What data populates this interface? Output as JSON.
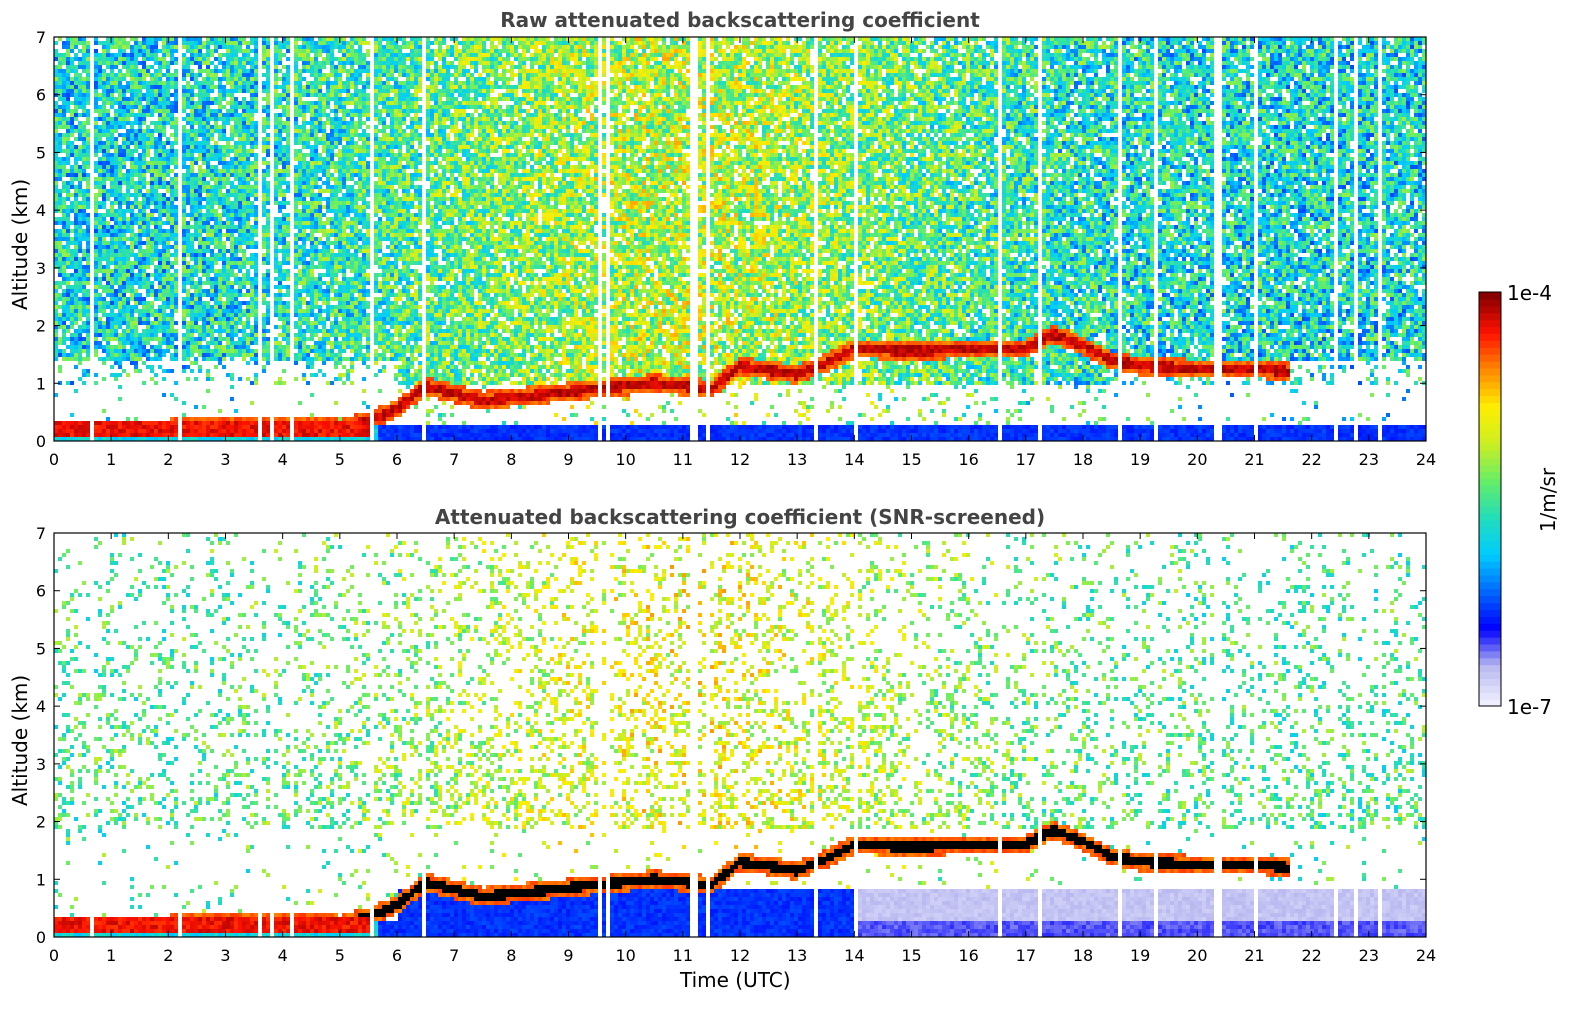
{
  "chart_data": [
    {
      "type": "heatmap",
      "title": "Raw attenuated backscattering coefficient",
      "xlabel": "",
      "ylabel": "Altitude (km)",
      "xlim": [
        0,
        24
      ],
      "ylim": [
        0,
        7
      ],
      "x_ticks": [
        "0",
        "1",
        "2",
        "3",
        "4",
        "5",
        "6",
        "7",
        "8",
        "9",
        "10",
        "11",
        "12",
        "13",
        "14",
        "15",
        "16",
        "17",
        "18",
        "19",
        "20",
        "21",
        "22",
        "23",
        "24"
      ],
      "y_ticks": [
        "0",
        "1",
        "2",
        "3",
        "4",
        "5",
        "6",
        "7"
      ],
      "layer_top_km": [
        {
          "t": 0,
          "z": 0.22
        },
        {
          "t": 2,
          "z": 0.22
        },
        {
          "t": 3.5,
          "z": 0.28
        },
        {
          "t": 5,
          "z": 0.22
        },
        {
          "t": 5.5,
          "z": 0.35
        },
        {
          "t": 6,
          "z": 0.55
        },
        {
          "t": 6.5,
          "z": 0.95
        },
        {
          "t": 7.5,
          "z": 0.7
        },
        {
          "t": 9,
          "z": 0.85
        },
        {
          "t": 10.5,
          "z": 1.0
        },
        {
          "t": 11.5,
          "z": 0.9
        },
        {
          "t": 12,
          "z": 1.3
        },
        {
          "t": 13,
          "z": 1.15
        },
        {
          "t": 13.5,
          "z": 1.35
        },
        {
          "t": 14,
          "z": 1.6
        },
        {
          "t": 15,
          "z": 1.55
        },
        {
          "t": 16,
          "z": 1.6
        },
        {
          "t": 17,
          "z": 1.6
        },
        {
          "t": 17.5,
          "z": 1.85
        },
        {
          "t": 18,
          "z": 1.65
        },
        {
          "t": 18.5,
          "z": 1.4
        },
        {
          "t": 19,
          "z": 1.3
        },
        {
          "t": 20,
          "z": 1.25
        },
        {
          "t": 21,
          "z": 1.25
        },
        {
          "t": 21.6,
          "z": 1.2
        }
      ],
      "gap_times_utc": [
        0.65,
        2.2,
        3.6,
        3.8,
        4.15,
        5.55,
        6.45,
        9.55,
        9.7,
        10.15,
        11.15,
        11.25,
        11.45,
        13.35,
        13.5,
        14.05,
        16.55,
        17.25,
        18.65,
        19.3,
        20.35,
        20.4,
        21.0,
        22.4,
        22.75,
        23.2
      ]
    },
    {
      "type": "heatmap",
      "title": "Attenuated backscattering coefficient (SNR-screened)",
      "xlabel": "Time (UTC)",
      "ylabel": "Altitude (km)",
      "xlim": [
        0,
        24
      ],
      "ylim": [
        0,
        7
      ],
      "x_ticks": [
        "0",
        "1",
        "2",
        "3",
        "4",
        "5",
        "6",
        "7",
        "8",
        "9",
        "10",
        "11",
        "12",
        "13",
        "14",
        "15",
        "16",
        "17",
        "18",
        "19",
        "20",
        "21",
        "22",
        "23",
        "24"
      ],
      "y_ticks": [
        "0",
        "1",
        "2",
        "3",
        "4",
        "5",
        "6",
        "7"
      ]
    }
  ],
  "colorbar": {
    "label": "1/m/sr",
    "max_label": "1e-4",
    "min_label": "1e-7",
    "scale": "log",
    "range": [
      1e-07,
      0.0001
    ],
    "colors": [
      "#eeeeff",
      "#b8b8f0",
      "#0000ff",
      "#0066ff",
      "#00ccff",
      "#22ddbb",
      "#66ee66",
      "#ccee22",
      "#ffee00",
      "#ff8800",
      "#ff1100",
      "#880000"
    ]
  }
}
